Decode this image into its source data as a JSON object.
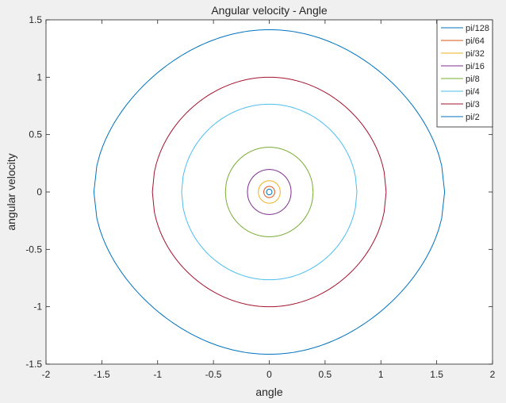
{
  "figure": {
    "background": "#f0f0f0"
  },
  "chart_data": {
    "type": "line",
    "title": "Angular velocity - Angle",
    "xlabel": "angle",
    "ylabel": "angular velocity",
    "xlim": [
      -2,
      2
    ],
    "ylim": [
      -1.5,
      1.5
    ],
    "xticks": [
      -2,
      -1.5,
      -1,
      -0.5,
      0,
      0.5,
      1,
      1.5,
      2
    ],
    "xtick_labels": [
      "-2",
      "-1.5",
      "-1",
      "-0.5",
      "0",
      "0.5",
      "1",
      "1.5",
      "2"
    ],
    "yticks": [
      -1.5,
      -1,
      -0.5,
      0,
      0.5,
      1,
      1.5
    ],
    "ytick_labels": [
      "-1.5",
      "-1",
      "-0.5",
      "0",
      "0.5",
      "1",
      "1.5"
    ],
    "grid": false,
    "legend_position": "top-right",
    "curve": "closed phase-plane orbit for each initial angle",
    "series": [
      {
        "name": "pi/128",
        "color": "#0072BD",
        "amplitude": 0.0245,
        "max_velocity": 0.0245
      },
      {
        "name": "pi/64",
        "color": "#D95319",
        "amplitude": 0.0491,
        "max_velocity": 0.049
      },
      {
        "name": "pi/32",
        "color": "#EDB120",
        "amplitude": 0.0982,
        "max_velocity": 0.098
      },
      {
        "name": "pi/16",
        "color": "#7E2F8E",
        "amplitude": 0.196,
        "max_velocity": 0.196
      },
      {
        "name": "pi/8",
        "color": "#77AC30",
        "amplitude": 0.393,
        "max_velocity": 0.39
      },
      {
        "name": "pi/4",
        "color": "#4DBEEE",
        "amplitude": 0.785,
        "max_velocity": 0.765
      },
      {
        "name": "pi/3",
        "color": "#A2142F",
        "amplitude": 1.047,
        "max_velocity": 1.0
      },
      {
        "name": "pi/2",
        "color": "#0072BD",
        "amplitude": 1.571,
        "max_velocity": 1.414
      }
    ]
  }
}
